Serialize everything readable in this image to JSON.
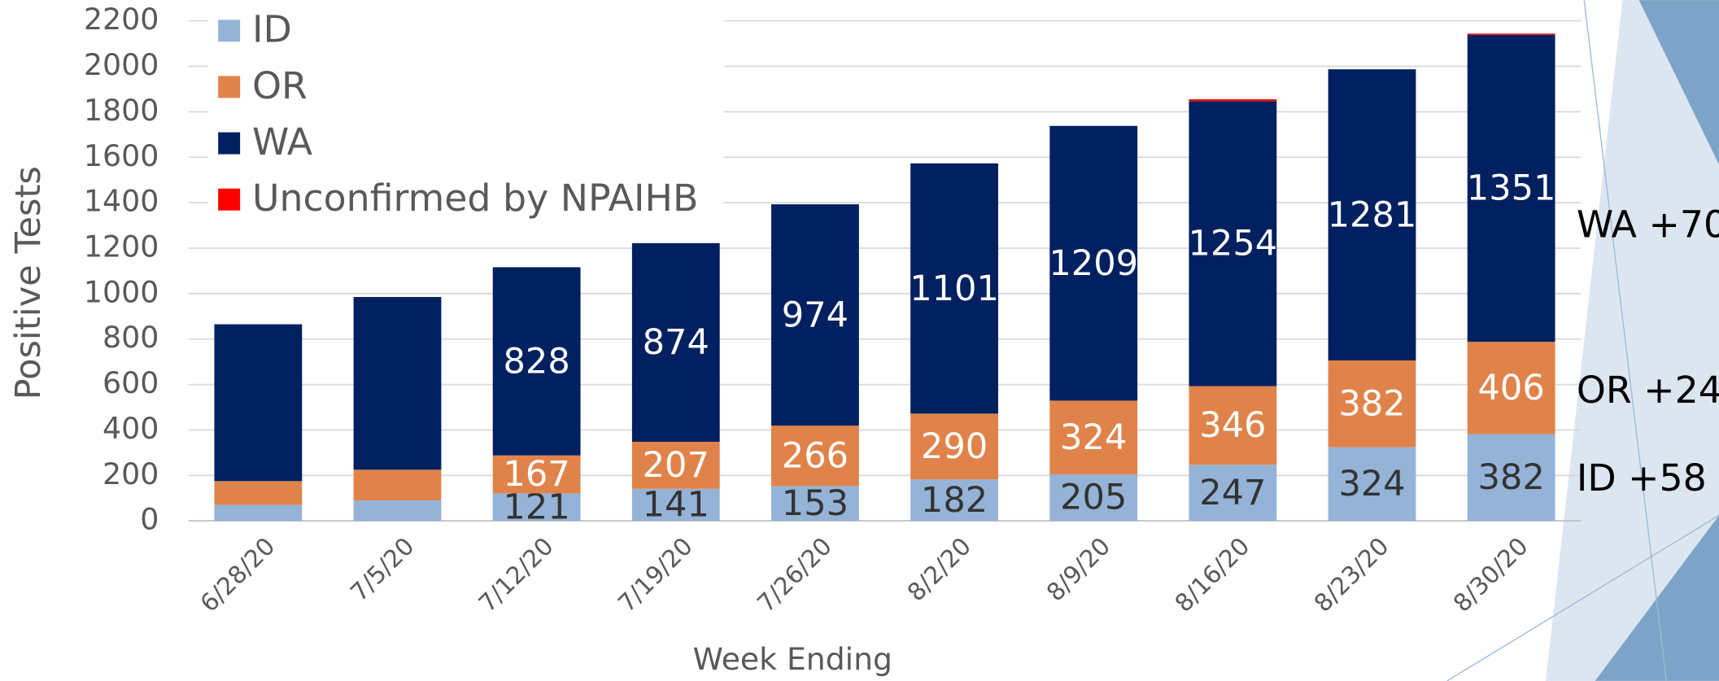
{
  "chart_data": {
    "type": "stacked_bar",
    "xlabel": "Week Ending",
    "ylabel": "Positive Tests",
    "categories": [
      "6/28/20",
      "7/5/20",
      "7/12/20",
      "7/19/20",
      "7/26/20",
      "8/2/20",
      "8/9/20",
      "8/16/20",
      "8/23/20",
      "8/30/20"
    ],
    "series": [
      {
        "name": "ID",
        "color": "#95b3d7",
        "values": [
          70,
          90,
          121,
          141,
          153,
          182,
          205,
          247,
          324,
          382
        ],
        "value_labels": [
          null,
          null,
          "121",
          "141",
          "153",
          "182",
          "205",
          "247",
          "324",
          "382"
        ]
      },
      {
        "name": "OR",
        "color": "#e0834a",
        "values": [
          105,
          135,
          167,
          207,
          266,
          290,
          324,
          346,
          382,
          406
        ],
        "value_labels": [
          null,
          null,
          "167",
          "207",
          "266",
          "290",
          "324",
          "346",
          "382",
          "406"
        ]
      },
      {
        "name": "WA",
        "color": "#002060",
        "values": [
          690,
          760,
          828,
          874,
          974,
          1101,
          1209,
          1254,
          1281,
          1351
        ],
        "value_labels": [
          null,
          null,
          "828",
          "874",
          "974",
          "1101",
          "1209",
          "1254",
          "1281",
          "1351"
        ]
      },
      {
        "name": "Unconfirmed by NPAIHB",
        "color": "#ff0000",
        "values": [
          0,
          0,
          0,
          0,
          0,
          0,
          0,
          8,
          0,
          5
        ]
      }
    ],
    "ylim": [
      0,
      2200
    ],
    "yticks": [
      0,
      200,
      400,
      600,
      800,
      1000,
      1200,
      1400,
      1600,
      1800,
      2000,
      2200
    ],
    "grid": true,
    "legend": "upper left",
    "annotations": [
      "WA +70",
      "OR +24",
      "ID +58"
    ]
  }
}
